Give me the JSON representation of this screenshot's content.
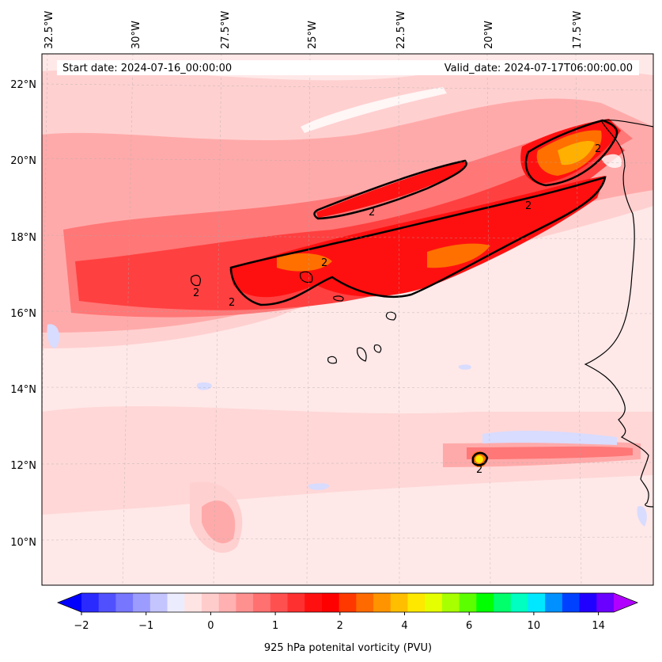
{
  "map": {
    "start_date": "Start date: 2024-07-16_00:00:00",
    "valid_date": "Valid_date: 2024-07-17T06:00:00.00",
    "lon_labels": [
      "32.5°W",
      "30°W",
      "27.5°W",
      "25°W",
      "22.5°W",
      "20°W",
      "17.5°W"
    ],
    "lat_labels": [
      "22°N",
      "20°N",
      "18°N",
      "16°N",
      "14°N",
      "12°N",
      "10°N"
    ],
    "contour_label": "2",
    "colors": {
      "background": "#ffe8e8",
      "light_pink": "#ffd0d0",
      "pink": "#ffaaaa",
      "salmon": "#ff7777",
      "red_light": "#ff4040",
      "red": "#ff1010",
      "orange": "#ff7000",
      "gold": "#ffb000",
      "light_blue": "#d8dcff",
      "coast": "#000000"
    }
  },
  "colorbar": {
    "label": "925 hPa potenital vorticity (PVU)",
    "ticks": [
      "−2",
      "−1",
      "0",
      "1",
      "2",
      "4",
      "6",
      "10",
      "14"
    ],
    "colors": [
      "#0000ff",
      "#2a2aff",
      "#5050ff",
      "#7676ff",
      "#9c9cff",
      "#c4c4ff",
      "#ececff",
      "#ffe4e4",
      "#ffcccc",
      "#ffb0b0",
      "#ff9090",
      "#ff7070",
      "#ff5050",
      "#ff3030",
      "#ff1010",
      "#ff0000",
      "#ff3800",
      "#ff6a00",
      "#ff9400",
      "#ffbe00",
      "#ffe800",
      "#e6ff00",
      "#a8ff00",
      "#5cff00",
      "#00ff00",
      "#00ff6a",
      "#00ffc0",
      "#00e8ff",
      "#0090ff",
      "#0040ff",
      "#2000ff",
      "#6a00ff",
      "#b000ff"
    ]
  }
}
